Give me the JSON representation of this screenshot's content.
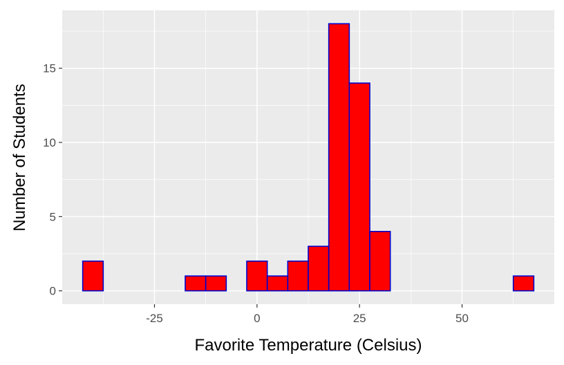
{
  "chart_data": {
    "type": "bar",
    "subtype": "histogram",
    "title": "",
    "xlabel": "Favorite Temperature (Celsius)",
    "ylabel": "Number of Students",
    "bin_width": 5,
    "bins": [
      {
        "start": -42.5,
        "end": -37.5,
        "count": 2
      },
      {
        "start": -37.5,
        "end": -32.5,
        "count": 0
      },
      {
        "start": -32.5,
        "end": -27.5,
        "count": 0
      },
      {
        "start": -27.5,
        "end": -22.5,
        "count": 0
      },
      {
        "start": -22.5,
        "end": -17.5,
        "count": 0
      },
      {
        "start": -17.5,
        "end": -12.5,
        "count": 1
      },
      {
        "start": -12.5,
        "end": -7.5,
        "count": 1
      },
      {
        "start": -7.5,
        "end": -2.5,
        "count": 0
      },
      {
        "start": -2.5,
        "end": 2.5,
        "count": 2
      },
      {
        "start": 2.5,
        "end": 7.5,
        "count": 1
      },
      {
        "start": 7.5,
        "end": 12.5,
        "count": 2
      },
      {
        "start": 12.5,
        "end": 17.5,
        "count": 3
      },
      {
        "start": 17.5,
        "end": 22.5,
        "count": 18
      },
      {
        "start": 22.5,
        "end": 27.5,
        "count": 14
      },
      {
        "start": 27.5,
        "end": 32.5,
        "count": 4
      },
      {
        "start": 32.5,
        "end": 37.5,
        "count": 0
      },
      {
        "start": 37.5,
        "end": 42.5,
        "count": 0
      },
      {
        "start": 42.5,
        "end": 47.5,
        "count": 0
      },
      {
        "start": 47.5,
        "end": 52.5,
        "count": 0
      },
      {
        "start": 52.5,
        "end": 57.5,
        "count": 0
      },
      {
        "start": 57.5,
        "end": 62.5,
        "count": 0
      },
      {
        "start": 62.5,
        "end": 67.5,
        "count": 1
      }
    ],
    "xlim": [
      -47.5,
      72.5
    ],
    "ylim": [
      -0.9,
      18.9
    ],
    "x_ticks": [
      -25,
      0,
      25,
      50
    ],
    "x_tick_labels": [
      "-25",
      "0",
      "25",
      "50"
    ],
    "y_ticks": [
      0,
      5,
      10,
      15
    ],
    "y_tick_labels": [
      "0",
      "5",
      "10",
      "15"
    ],
    "grid": true,
    "colors": {
      "bar_fill": "#FF0000",
      "bar_outline": "#0000CD",
      "panel_background": "#EBEBEB",
      "grid_major": "#FFFFFF",
      "tick_label": "#4D4D4D",
      "axis_title": "#000000"
    }
  }
}
